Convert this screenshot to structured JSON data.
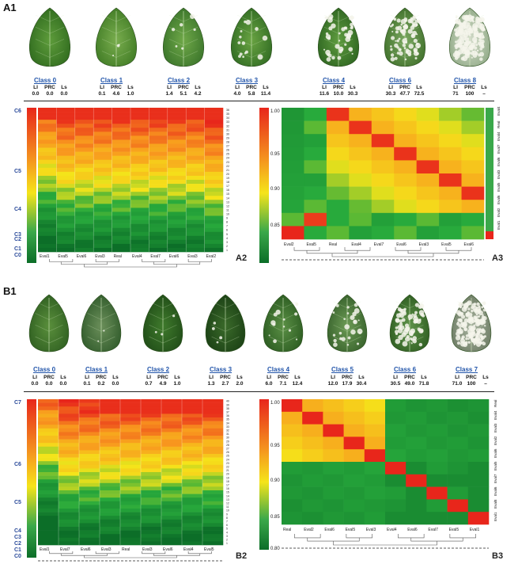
{
  "panels": {
    "a1": "A1",
    "a2": "A2",
    "a3": "A3",
    "b1": "B1",
    "b2": "B2",
    "b3": "B3"
  },
  "stat_headers": [
    "LI",
    "PRC",
    "Ls"
  ],
  "rowA": [
    {
      "cls": "Class 0",
      "li": "0.0",
      "prc": "0.0",
      "ls": "0.0"
    },
    {
      "cls": "Class 1",
      "li": "0.1",
      "prc": "4.6",
      "ls": "1.0"
    },
    {
      "cls": "Class 2",
      "li": "1.4",
      "prc": "5.1",
      "ls": "4.2"
    },
    {
      "cls": "Class 3",
      "li": "4.0",
      "prc": "5.8",
      "ls": "11.4"
    },
    {
      "cls": "Class 4",
      "li": "11.6",
      "prc": "10.0",
      "ls": "30.3"
    },
    {
      "cls": "Class 6",
      "li": "30.3",
      "prc": "47.7",
      "ls": "72.5"
    },
    {
      "cls": "Class 8",
      "li": "71",
      "prc": "100",
      "ls": "–"
    }
  ],
  "rowB": [
    {
      "cls": "Class 0",
      "li": "0.0",
      "prc": "0.0",
      "ls": "0.0"
    },
    {
      "cls": "Class 1",
      "li": "0.1",
      "prc": "0.2",
      "ls": "0.0"
    },
    {
      "cls": "Class 2",
      "li": "0.7",
      "prc": "4.9",
      "ls": "1.0"
    },
    {
      "cls": "Class 3",
      "li": "1.3",
      "prc": "2.7",
      "ls": "2.0"
    },
    {
      "cls": "Class 4",
      "li": "6.0",
      "prc": "7.1",
      "ls": "12.4"
    },
    {
      "cls": "Class 5",
      "li": "12.0",
      "prc": "17.9",
      "ls": "30.4"
    },
    {
      "cls": "Class 6",
      "li": "30.5",
      "prc": "49.0",
      "ls": "71.8"
    },
    {
      "cls": "Class 7",
      "li": "71.0",
      "prc": "100",
      "ls": "–"
    }
  ],
  "a2_left": [
    "C6",
    "C5",
    "C4",
    "C3",
    "C2",
    "C1",
    "C0"
  ],
  "a2_cols": [
    "Eval1",
    "Eval5",
    "Eval6",
    "Eval3",
    "Real",
    "Eval4",
    "Eval7",
    "Eval6",
    "Eval3",
    "Eval2"
  ],
  "a3_scale": [
    "1.00",
    "0.95",
    "0.90",
    "0.85"
  ],
  "a3_cols": [
    "Eval2",
    "Eval5",
    "Real",
    "Eval4",
    "Eval7",
    "Eval6",
    "Eval3",
    "Eval5",
    "Eval6"
  ],
  "a3_right": [
    "Eval4",
    "Real",
    "Eval4",
    "Eval7",
    "Eval6",
    "Eval3",
    "Eval5",
    "Eval6",
    "Eval2",
    "Eval1"
  ],
  "b2_left": [
    "C7",
    "C6",
    "C5",
    "C4",
    "C3",
    "C2",
    "C1",
    "C0"
  ],
  "b2_cols": [
    "Eval1",
    "Eval7",
    "Eval6",
    "Eval3",
    "Real",
    "Eval3",
    "Eval6",
    "Eval4",
    "Eval5"
  ],
  "b3_scale": [
    "1.00",
    "0.95",
    "0.90",
    "0.85",
    "0.80"
  ],
  "b3_cols": [
    "Real",
    "Eval2",
    "Eval6",
    "Eval5",
    "Eval3",
    "Eval4",
    "Eval6",
    "Eval7",
    "Eval5",
    "Eval1"
  ],
  "b3_right": [
    "Real",
    "Eval4",
    "Eval3",
    "Eval2",
    "Eval6",
    "Eval5",
    "Eval7",
    "Eval6",
    "Eval8",
    "Eval1"
  ],
  "colors": {
    "high": "#e8261b",
    "mid": "#f5e41a",
    "low": "#0c7a2c"
  }
}
